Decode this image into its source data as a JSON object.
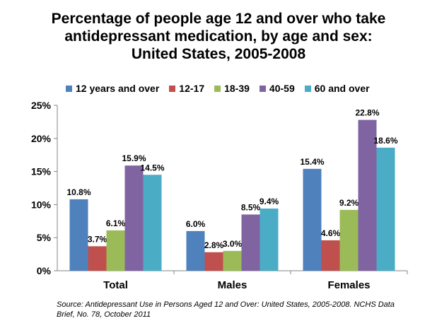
{
  "chart_data": {
    "type": "bar",
    "title": "Percentage of people age 12 and over who take antidepressant medication, by age and sex: United States, 2005-2008",
    "title_lines": [
      "Percentage of people age 12 and over who take",
      "antidepressant medication, by age and sex:",
      "United States, 2005-2008"
    ],
    "categories": [
      "Total",
      "Males",
      "Females"
    ],
    "series": [
      {
        "name": "12 years and over",
        "color": "#4F81BD",
        "values": [
          10.8,
          6.0,
          15.4
        ]
      },
      {
        "name": "12-17",
        "color": "#C0504D",
        "values": [
          3.7,
          2.8,
          4.6
        ]
      },
      {
        "name": "18-39",
        "color": "#9BBB59",
        "values": [
          6.1,
          3.0,
          9.2
        ]
      },
      {
        "name": "40-59",
        "color": "#8064A2",
        "values": [
          15.9,
          8.5,
          22.8
        ]
      },
      {
        "name": "60 and over",
        "color": "#4BACC6",
        "values": [
          14.5,
          9.4,
          18.6
        ]
      }
    ],
    "yticks": [
      "0%",
      "5%",
      "10%",
      "15%",
      "20%",
      "25%"
    ],
    "ylim": [
      0,
      25
    ],
    "xlabel": "",
    "ylabel": "",
    "grid": false,
    "legend": "top",
    "data_labels": true,
    "source": "Source: Antidepressant Use in Persons Aged 12 and Over: United States, 2005-2008. NCHS Data Brief, No. 78, October 2011"
  }
}
